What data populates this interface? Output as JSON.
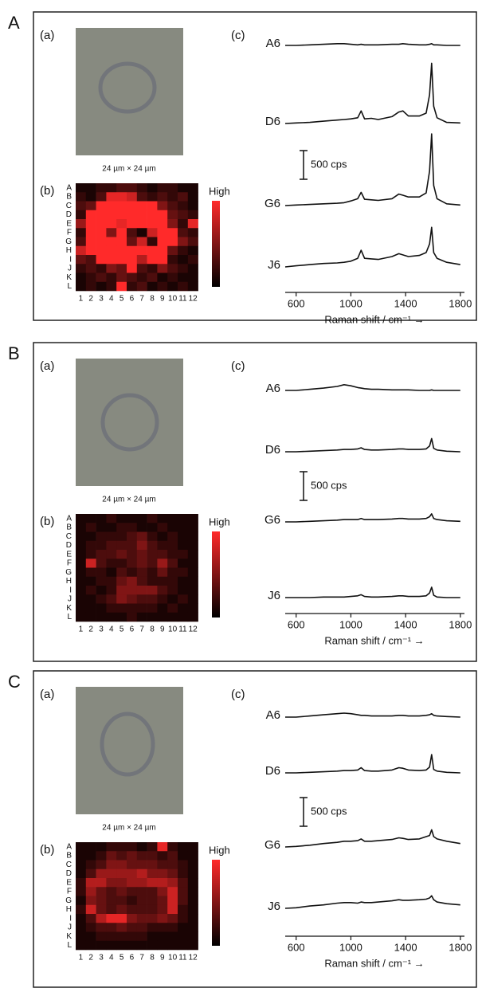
{
  "panels": [
    {
      "label": "A",
      "micrograph": {
        "label": "(a)",
        "caption": "24 µm × 24 µm"
      },
      "map": {
        "label": "(b)",
        "rows": [
          "A",
          "B",
          "C",
          "D",
          "E",
          "F",
          "G",
          "H",
          "I",
          "J",
          "K",
          "L"
        ],
        "columns": [
          1,
          2,
          3,
          4,
          5,
          6,
          7,
          8,
          9,
          10,
          11,
          12
        ],
        "colorbar_label": "High",
        "values": [
          [
            0.1,
            0.1,
            0.2,
            0.2,
            0.3,
            0.3,
            0.2,
            0.1,
            0.2,
            0.2,
            0.1,
            0.1
          ],
          [
            0.2,
            0.1,
            0.3,
            0.9,
            0.9,
            0.8,
            0.3,
            0.2,
            0.3,
            0.2,
            0.3,
            0.1
          ],
          [
            0.3,
            0.4,
            1,
            1,
            1,
            1,
            1,
            1,
            0.5,
            0.3,
            0.2,
            0.1
          ],
          [
            0.2,
            1,
            1,
            1,
            1,
            1,
            1,
            1,
            1,
            0.4,
            0.3,
            0.2
          ],
          [
            0.6,
            1,
            1,
            1,
            0.9,
            1,
            1,
            1,
            1,
            0.5,
            0.2,
            0.9
          ],
          [
            0.2,
            1,
            1,
            0.5,
            1,
            0.3,
            0.1,
            0.8,
            1,
            1,
            0.3,
            0.2
          ],
          [
            0.3,
            1,
            1,
            1,
            1,
            0.4,
            0.8,
            0.2,
            1,
            1,
            0.5,
            0.3
          ],
          [
            0.8,
            1,
            1,
            1,
            1,
            1,
            1,
            1,
            1,
            0.4,
            0.2,
            0.1
          ],
          [
            0.4,
            0.3,
            1,
            1,
            1,
            1,
            0.7,
            1,
            1,
            0.2,
            0.1,
            0.2
          ],
          [
            0.2,
            0.3,
            0.2,
            0.5,
            0.4,
            1,
            0.3,
            0.2,
            0.5,
            0.3,
            0.2,
            0.1
          ],
          [
            0.1,
            0.2,
            0.3,
            0.2,
            0.4,
            0.3,
            0.2,
            0.3,
            0.1,
            0.2,
            0.1,
            0.1
          ],
          [
            0.1,
            0.2,
            0.1,
            0.2,
            1,
            0.2,
            0.3,
            0.1,
            0.2,
            0.1,
            0.2,
            0.1
          ]
        ]
      },
      "spectra": {
        "type": "line",
        "label": "(c)",
        "xlabel": "Raman shift / cm⁻¹ →",
        "xlim": [
          520,
          1830
        ],
        "xticks": [
          600,
          1000,
          1400,
          1800
        ],
        "scale_bar": {
          "value": 500,
          "label": "500 cps"
        },
        "color": "#111111",
        "x": [
          520,
          600,
          700,
          800,
          900,
          950,
          1000,
          1050,
          1075,
          1100,
          1150,
          1200,
          1300,
          1350,
          1380,
          1420,
          1500,
          1550,
          1575,
          1590,
          1605,
          1630,
          1700,
          1800
        ],
        "series": [
          {
            "name": "A6",
            "values": [
              0,
              0,
              10,
              20,
              30,
              30,
              20,
              10,
              20,
              10,
              10,
              10,
              20,
              20,
              30,
              20,
              10,
              10,
              20,
              30,
              10,
              10,
              0,
              0
            ]
          },
          {
            "name": "D6",
            "values": [
              0,
              10,
              20,
              40,
              60,
              70,
              80,
              100,
              220,
              80,
              90,
              70,
              120,
              200,
              220,
              130,
              130,
              180,
              500,
              1050,
              300,
              100,
              20,
              10
            ]
          },
          {
            "name": "G6",
            "values": [
              0,
              10,
              20,
              30,
              40,
              50,
              80,
              120,
              230,
              110,
              100,
              90,
              120,
              200,
              180,
              150,
              150,
              220,
              600,
              1250,
              350,
              120,
              30,
              10
            ]
          },
          {
            "name": "J6",
            "values": [
              0,
              20,
              40,
              60,
              70,
              80,
              100,
              150,
              290,
              150,
              140,
              130,
              180,
              230,
              210,
              180,
              200,
              250,
              400,
              690,
              250,
              150,
              80,
              40
            ]
          }
        ]
      }
    },
    {
      "label": "B",
      "micrograph": {
        "label": "(a)",
        "caption": "24 µm × 24 µm"
      },
      "map": {
        "label": "(b)",
        "rows": [
          "A",
          "B",
          "C",
          "D",
          "E",
          "F",
          "G",
          "H",
          "I",
          "J",
          "K",
          "L"
        ],
        "columns": [
          1,
          2,
          3,
          4,
          5,
          6,
          7,
          8,
          9,
          10,
          11,
          12
        ],
        "colorbar_label": "High",
        "values": [
          [
            0.1,
            0.1,
            0.1,
            0.2,
            0.1,
            0.1,
            0.1,
            0.2,
            0.1,
            0.1,
            0.1,
            0.1
          ],
          [
            0.1,
            0.2,
            0.1,
            0.1,
            0.2,
            0.2,
            0.1,
            0.1,
            0.2,
            0.1,
            0.1,
            0.1
          ],
          [
            0.1,
            0.1,
            0.2,
            0.2,
            0.2,
            0.3,
            0.4,
            0.2,
            0.1,
            0.2,
            0.1,
            0.1
          ],
          [
            0.1,
            0.2,
            0.2,
            0.3,
            0.3,
            0.3,
            0.5,
            0.3,
            0.2,
            0.2,
            0.1,
            0.1
          ],
          [
            0.1,
            0.2,
            0.3,
            0.3,
            0.4,
            0.3,
            0.4,
            0.3,
            0.3,
            0.2,
            0.2,
            0.1
          ],
          [
            0.1,
            0.8,
            0.3,
            0.2,
            0.2,
            0.3,
            0.4,
            0.3,
            0.6,
            0.3,
            0.1,
            0.1
          ],
          [
            0.1,
            0.2,
            0.2,
            0.1,
            0.3,
            0.2,
            0.3,
            0.2,
            0.4,
            0.2,
            0.2,
            0.1
          ],
          [
            0.1,
            0.1,
            0.2,
            0.2,
            0.4,
            0.5,
            0.3,
            0.2,
            0.2,
            0.2,
            0.1,
            0.1
          ],
          [
            0.1,
            0.2,
            0.1,
            0.2,
            0.5,
            0.5,
            0.5,
            0.5,
            0.3,
            0.2,
            0.1,
            0.1
          ],
          [
            0.1,
            0.1,
            0.2,
            0.3,
            0.5,
            0.4,
            0.3,
            0.3,
            0.2,
            0.1,
            0.2,
            0.1
          ],
          [
            0.1,
            0.1,
            0.1,
            0.2,
            0.2,
            0.2,
            0.2,
            0.2,
            0.1,
            0.2,
            0.1,
            0.1
          ],
          [
            0.1,
            0.1,
            0.1,
            0.1,
            0.1,
            0.2,
            0.1,
            0.1,
            0.1,
            0.1,
            0.1,
            0.1
          ]
        ]
      },
      "spectra": {
        "type": "line",
        "label": "(c)",
        "xlabel": "Raman shift / cm⁻¹ →",
        "xlim": [
          520,
          1830
        ],
        "xticks": [
          600,
          1000,
          1400,
          1800
        ],
        "scale_bar": {
          "value": 500,
          "label": "500 cps"
        },
        "color": "#111111",
        "x": [
          520,
          600,
          700,
          800,
          900,
          950,
          1000,
          1050,
          1075,
          1100,
          1150,
          1200,
          1300,
          1350,
          1380,
          1420,
          1500,
          1550,
          1575,
          1590,
          1605,
          1630,
          1700,
          1800
        ],
        "series": [
          {
            "name": "A6",
            "values": [
              0,
              0,
              20,
              40,
              70,
              100,
              80,
              50,
              40,
              30,
              20,
              20,
              10,
              10,
              10,
              10,
              0,
              0,
              0,
              10,
              0,
              0,
              0,
              0
            ]
          },
          {
            "name": "D6",
            "values": [
              0,
              0,
              10,
              20,
              30,
              40,
              40,
              50,
              70,
              40,
              30,
              30,
              40,
              50,
              50,
              40,
              40,
              50,
              100,
              230,
              60,
              30,
              10,
              0
            ]
          },
          {
            "name": "G6",
            "values": [
              0,
              0,
              10,
              20,
              30,
              40,
              40,
              40,
              60,
              40,
              40,
              40,
              50,
              60,
              60,
              50,
              50,
              60,
              90,
              140,
              60,
              40,
              20,
              10
            ]
          },
          {
            "name": "J6",
            "values": [
              0,
              0,
              0,
              10,
              10,
              10,
              20,
              30,
              50,
              20,
              10,
              10,
              20,
              30,
              30,
              20,
              20,
              30,
              80,
              180,
              40,
              10,
              0,
              0
            ]
          }
        ]
      }
    },
    {
      "label": "C",
      "micrograph": {
        "label": "(a)",
        "caption": "24 µm × 24 µm"
      },
      "map": {
        "label": "(b)",
        "rows": [
          "A",
          "B",
          "C",
          "D",
          "E",
          "F",
          "G",
          "H",
          "I",
          "J",
          "K",
          "L"
        ],
        "columns": [
          1,
          2,
          3,
          4,
          5,
          6,
          7,
          8,
          9,
          10,
          11,
          12
        ],
        "colorbar_label": "High",
        "values": [
          [
            0.1,
            0.1,
            0.1,
            0.2,
            0.2,
            0.2,
            0.1,
            0.2,
            0.9,
            0.2,
            0.1,
            0.1
          ],
          [
            0.1,
            0.1,
            0.2,
            0.4,
            0.3,
            0.4,
            0.3,
            0.3,
            0.2,
            0.3,
            0.1,
            0.1
          ],
          [
            0.1,
            0.2,
            0.3,
            0.5,
            0.5,
            0.4,
            0.4,
            0.4,
            0.3,
            0.3,
            0.2,
            0.1
          ],
          [
            0.1,
            0.3,
            0.6,
            0.6,
            0.6,
            0.6,
            0.7,
            0.5,
            0.5,
            0.4,
            0.2,
            0.1
          ],
          [
            0.2,
            0.7,
            0.7,
            0.5,
            0.5,
            0.6,
            0.6,
            0.7,
            0.7,
            0.6,
            0.3,
            0.1
          ],
          [
            0.2,
            0.6,
            0.4,
            0.3,
            0.4,
            0.3,
            0.3,
            0.3,
            0.5,
            0.8,
            0.3,
            0.1
          ],
          [
            0.1,
            0.5,
            0.4,
            0.3,
            0.3,
            0.2,
            0.3,
            0.3,
            0.4,
            0.8,
            0.3,
            0.1
          ],
          [
            0.2,
            0.8,
            0.4,
            0.3,
            0.4,
            0.3,
            0.3,
            0.3,
            0.4,
            0.8,
            0.2,
            0.1
          ],
          [
            0.1,
            0.3,
            0.7,
            0.9,
            0.9,
            0.5,
            0.4,
            0.4,
            0.5,
            0.4,
            0.2,
            0.1
          ],
          [
            0.1,
            0.2,
            0.3,
            0.3,
            0.4,
            0.3,
            0.3,
            0.2,
            0.2,
            0.2,
            0.1,
            0.1
          ],
          [
            0.1,
            0.1,
            0.2,
            0.2,
            0.2,
            0.2,
            0.2,
            0.1,
            0.1,
            0.1,
            0.1,
            0.1
          ],
          [
            0.1,
            0.1,
            0.1,
            0.1,
            0.1,
            0.1,
            0.1,
            0.1,
            0.1,
            0.1,
            0.1,
            0.1
          ]
        ]
      },
      "spectra": {
        "type": "line",
        "label": "(c)",
        "xlabel": "Raman shift / cm⁻¹ →",
        "xlim": [
          520,
          1830
        ],
        "xticks": [
          600,
          1000,
          1400,
          1800
        ],
        "scale_bar": {
          "value": 500,
          "label": "500 cps"
        },
        "color": "#111111",
        "x": [
          520,
          600,
          700,
          800,
          900,
          950,
          1000,
          1050,
          1075,
          1100,
          1150,
          1200,
          1300,
          1350,
          1380,
          1420,
          1500,
          1550,
          1575,
          1590,
          1605,
          1630,
          1700,
          1800
        ],
        "series": [
          {
            "name": "A6",
            "values": [
              0,
              0,
              20,
              40,
              60,
              70,
              60,
              40,
              30,
              30,
              20,
              20,
              20,
              30,
              30,
              20,
              20,
              30,
              40,
              60,
              30,
              20,
              10,
              0
            ]
          },
          {
            "name": "D6",
            "values": [
              0,
              0,
              10,
              20,
              30,
              40,
              40,
              50,
              90,
              40,
              30,
              30,
              50,
              90,
              80,
              50,
              40,
              50,
              100,
              320,
              60,
              30,
              10,
              0
            ]
          },
          {
            "name": "G6",
            "values": [
              0,
              10,
              30,
              60,
              80,
              100,
              100,
              110,
              140,
              100,
              100,
              110,
              130,
              160,
              150,
              130,
              140,
              180,
              200,
              300,
              180,
              140,
              100,
              60
            ]
          },
          {
            "name": "J6",
            "values": [
              0,
              10,
              40,
              60,
              90,
              100,
              100,
              90,
              110,
              100,
              100,
              110,
              130,
              150,
              140,
              140,
              150,
              160,
              180,
              220,
              150,
              110,
              80,
              60
            ]
          }
        ]
      }
    }
  ]
}
